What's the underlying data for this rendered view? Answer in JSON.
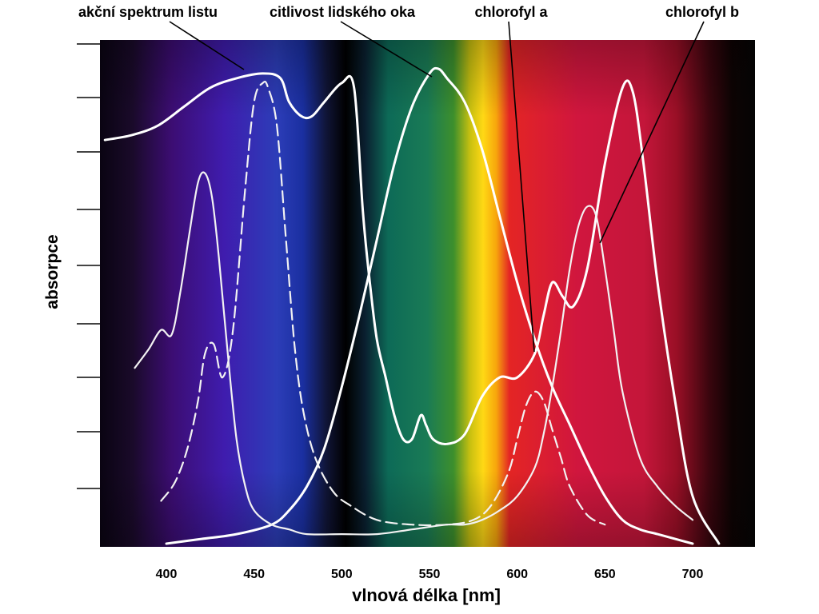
{
  "chart_data": {
    "type": "line",
    "xlabel": "vlnová délka [nm]",
    "ylabel": "absorpce",
    "xlim": [
      365,
      737
    ],
    "ylim": [
      0,
      1
    ],
    "grid": false,
    "legend": "callouts-top",
    "x_ticks": [
      "400",
      "450",
      "500",
      "550",
      "600",
      "650",
      "700"
    ],
    "background": "visible light spectrum",
    "series": [
      {
        "name": "akční spektrum listu",
        "style": "solid",
        "color": "#ffffff",
        "x": [
          365,
          380,
          395,
          410,
          425,
          440,
          455,
          465,
          470,
          477,
          483,
          490,
          500,
          507,
          512,
          516,
          520,
          525,
          530,
          535,
          540,
          545,
          548,
          552,
          560,
          570,
          580,
          590,
          600,
          610,
          615,
          620,
          626,
          632,
          640,
          650,
          660,
          666,
          672,
          680,
          690,
          700,
          715
        ],
        "y": [
          0.85,
          0.86,
          0.88,
          0.92,
          0.96,
          0.98,
          0.99,
          0.98,
          0.93,
          0.9,
          0.9,
          0.93,
          0.97,
          0.96,
          0.7,
          0.55,
          0.43,
          0.35,
          0.27,
          0.22,
          0.22,
          0.27,
          0.25,
          0.22,
          0.21,
          0.23,
          0.31,
          0.35,
          0.35,
          0.4,
          0.48,
          0.55,
          0.52,
          0.5,
          0.58,
          0.8,
          0.96,
          0.95,
          0.8,
          0.55,
          0.3,
          0.1,
          0.0
        ]
      },
      {
        "name": "citlivost lidského oka",
        "style": "solid",
        "color": "#ffffff",
        "x": [
          400,
          420,
          440,
          460,
          470,
          480,
          490,
          500,
          510,
          520,
          530,
          540,
          550,
          555,
          560,
          570,
          580,
          590,
          600,
          610,
          620,
          630,
          640,
          650,
          660,
          670,
          680,
          690,
          700
        ],
        "y": [
          0.0,
          0.01,
          0.02,
          0.04,
          0.07,
          0.12,
          0.2,
          0.33,
          0.48,
          0.64,
          0.8,
          0.92,
          0.99,
          1.0,
          0.98,
          0.93,
          0.83,
          0.69,
          0.55,
          0.43,
          0.33,
          0.25,
          0.17,
          0.1,
          0.05,
          0.03,
          0.02,
          0.01,
          0.0
        ]
      },
      {
        "name": "chlorofyl a",
        "style": "solid",
        "color": "#f2f2f2",
        "x": [
          382,
          390,
          397,
          403,
          408,
          413,
          418,
          422,
          426,
          430,
          435,
          440,
          445,
          450,
          460,
          470,
          480,
          500,
          520,
          540,
          560,
          570,
          580,
          590,
          600,
          610,
          615,
          620,
          625,
          630,
          635,
          640,
          645,
          650,
          655,
          660,
          670,
          680,
          690,
          700
        ],
        "y": [
          0.37,
          0.41,
          0.45,
          0.44,
          0.53,
          0.65,
          0.76,
          0.78,
          0.73,
          0.6,
          0.4,
          0.22,
          0.12,
          0.07,
          0.04,
          0.03,
          0.02,
          0.02,
          0.02,
          0.03,
          0.04,
          0.04,
          0.05,
          0.07,
          0.1,
          0.16,
          0.23,
          0.33,
          0.45,
          0.58,
          0.67,
          0.71,
          0.69,
          0.58,
          0.45,
          0.32,
          0.18,
          0.12,
          0.08,
          0.05
        ]
      },
      {
        "name": "chlorofyl b",
        "style": "dashed",
        "color": "#f2f2f2",
        "x": [
          397,
          405,
          412,
          418,
          422,
          427,
          432,
          438,
          445,
          450,
          455,
          458,
          463,
          468,
          473,
          478,
          485,
          495,
          505,
          520,
          540,
          560,
          575,
          585,
          595,
          600,
          605,
          610,
          615,
          620,
          625,
          630,
          640,
          650
        ],
        "y": [
          0.09,
          0.13,
          0.2,
          0.3,
          0.4,
          0.42,
          0.35,
          0.45,
          0.75,
          0.93,
          0.97,
          0.96,
          0.88,
          0.65,
          0.42,
          0.28,
          0.18,
          0.11,
          0.08,
          0.05,
          0.04,
          0.04,
          0.05,
          0.08,
          0.15,
          0.22,
          0.29,
          0.32,
          0.3,
          0.24,
          0.18,
          0.12,
          0.06,
          0.04
        ]
      }
    ]
  }
}
